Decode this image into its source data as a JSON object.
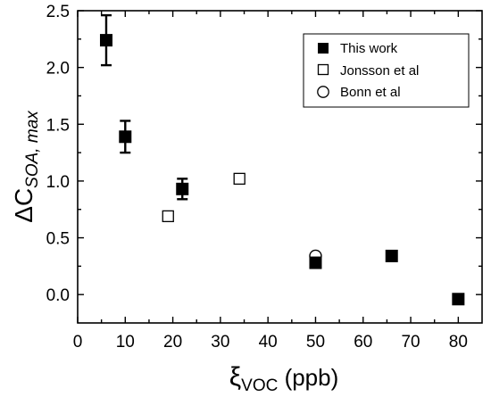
{
  "chart_data": {
    "type": "scatter",
    "title": "",
    "xlabel": {
      "main": "ξ",
      "sub": "VOC",
      "suffix": " (ppb)"
    },
    "ylabel": {
      "main": "ΔC",
      "sub": "SOA, max"
    },
    "xlim": [
      0,
      85
    ],
    "ylim": [
      -0.25,
      2.5
    ],
    "xticks": [
      0,
      10,
      20,
      30,
      40,
      50,
      60,
      70,
      80
    ],
    "yticks": [
      0.0,
      0.5,
      1.0,
      1.5,
      2.0,
      2.5
    ],
    "ytick_labels": [
      "0.0",
      "0.5",
      "1.0",
      "1.5",
      "2.0",
      "2.5"
    ],
    "grid": false,
    "legend_position": "top-right",
    "series": [
      {
        "name": "This work",
        "marker": "filled-square",
        "color": "#000000",
        "points": [
          {
            "x": 6,
            "y": 2.24,
            "err_low": 2.02,
            "err_high": 2.46
          },
          {
            "x": 10,
            "y": 1.39,
            "err_low": 1.25,
            "err_high": 1.53
          },
          {
            "x": 22,
            "y": 0.93,
            "err_low": 0.84,
            "err_high": 1.02
          },
          {
            "x": 50,
            "y": 0.28,
            "err_low": 0.25,
            "err_high": 0.31
          },
          {
            "x": 66,
            "y": 0.34,
            "err_low": 0.31,
            "err_high": 0.37
          },
          {
            "x": 80,
            "y": -0.04,
            "err_low": -0.07,
            "err_high": -0.01
          }
        ]
      },
      {
        "name": "Jonsson et al",
        "marker": "open-square",
        "color": "#000000",
        "points": [
          {
            "x": 19,
            "y": 0.69
          },
          {
            "x": 34,
            "y": 1.02
          }
        ]
      },
      {
        "name": "Bonn et al",
        "marker": "open-circle",
        "color": "#000000",
        "points": [
          {
            "x": 50,
            "y": 0.34
          }
        ]
      }
    ]
  }
}
